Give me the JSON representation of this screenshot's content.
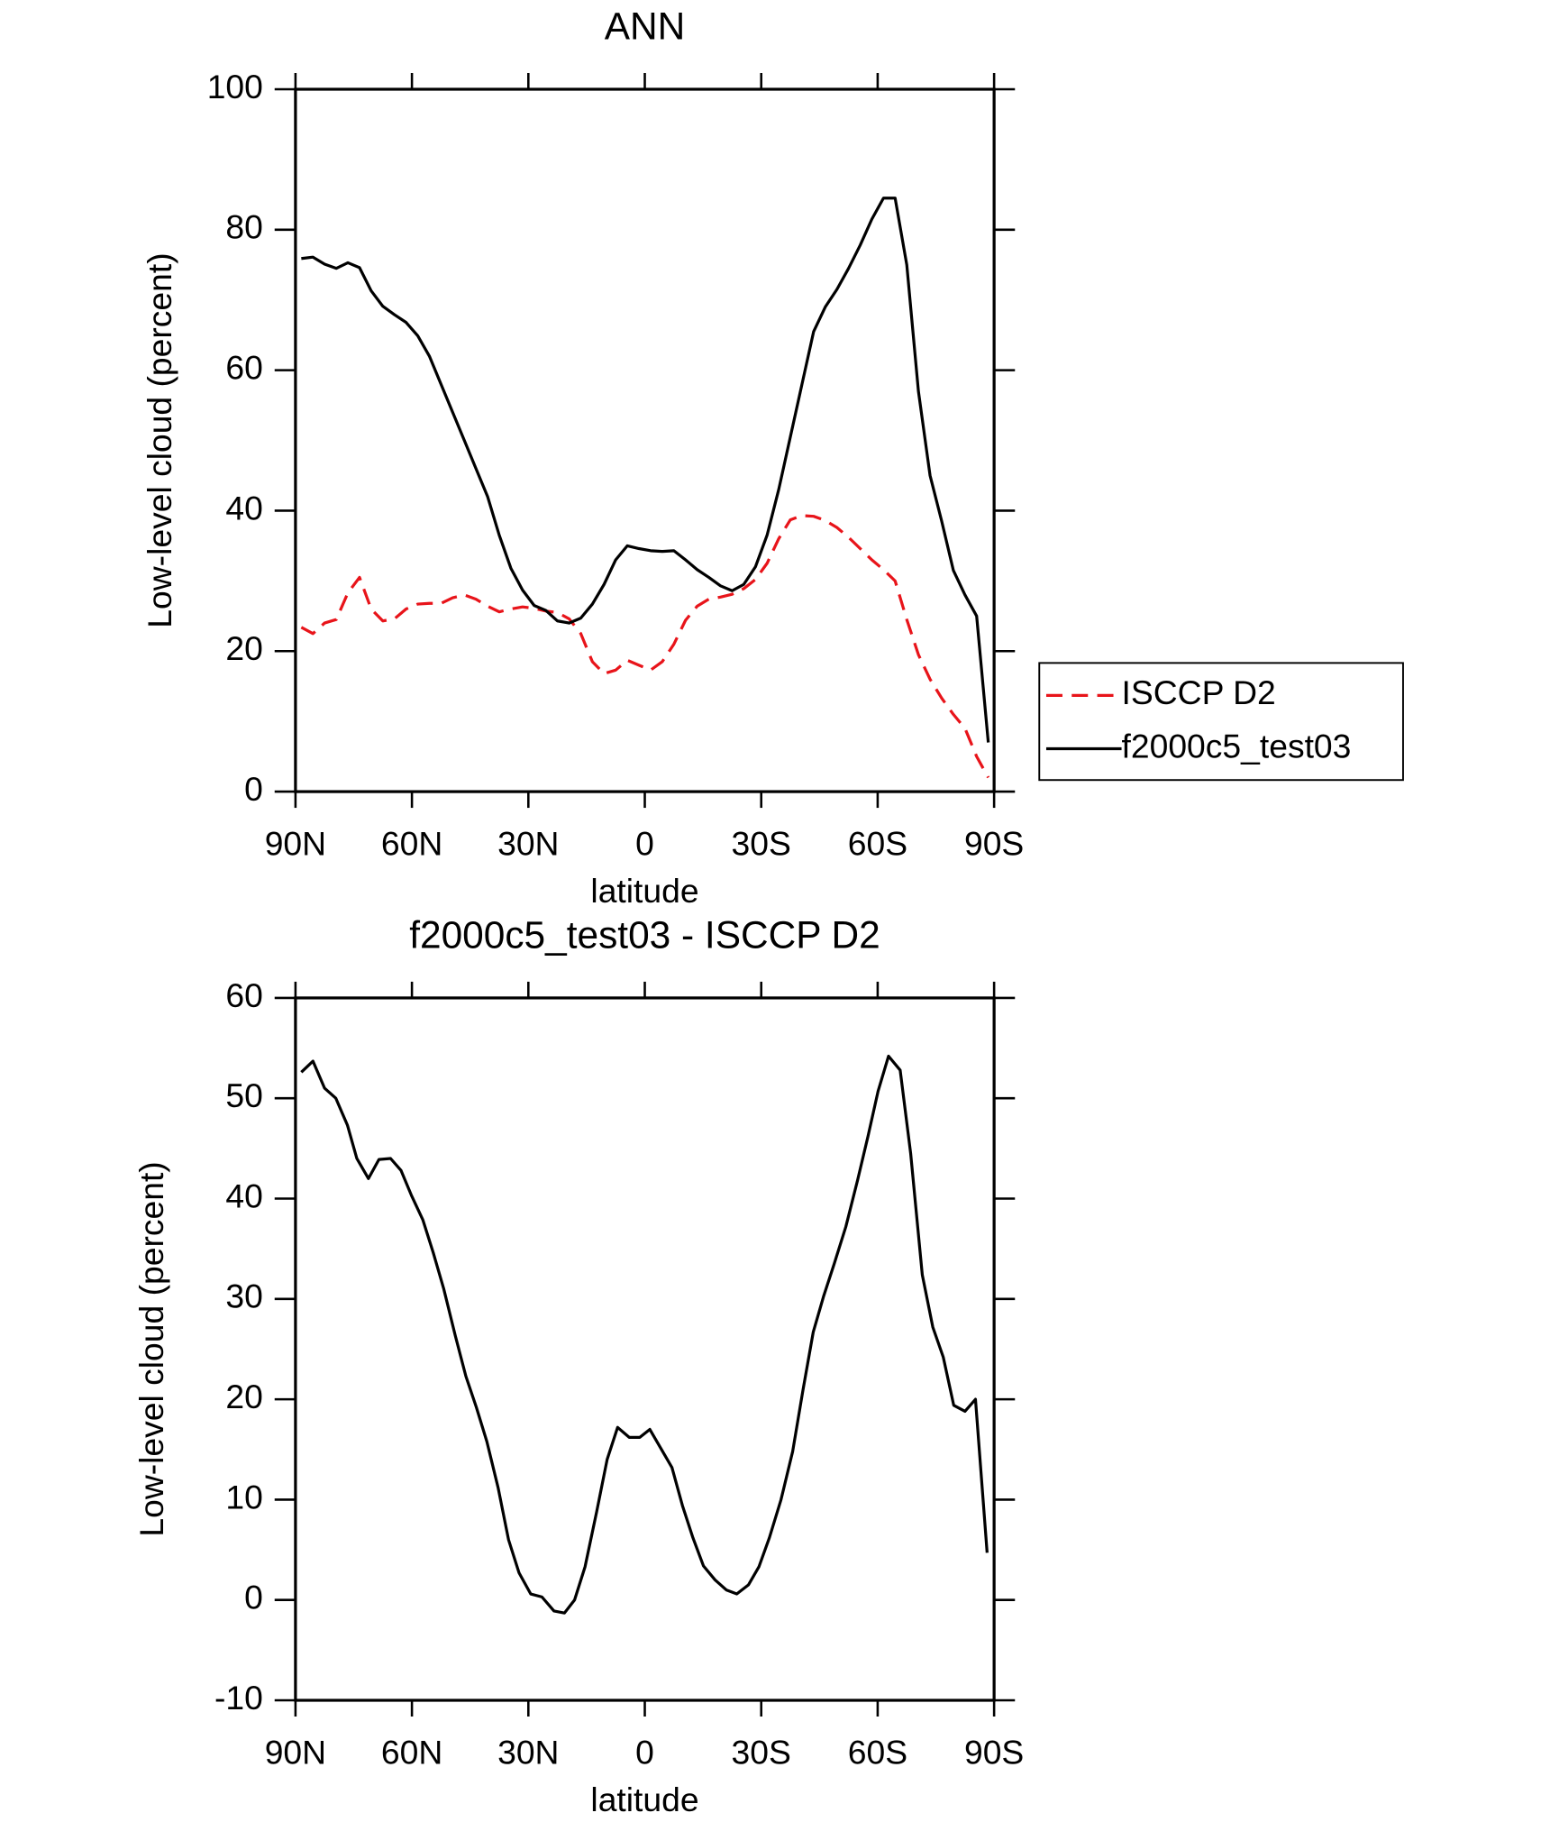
{
  "chart_data": [
    {
      "type": "line",
      "title": "ANN",
      "xlabel": "latitude",
      "ylabel": "Low-level cloud (percent)",
      "xlim": [
        90,
        -90
      ],
      "xticks": [
        {
          "value": 90,
          "label": "90N"
        },
        {
          "value": 60,
          "label": "60N"
        },
        {
          "value": 30,
          "label": "30N"
        },
        0,
        {
          "value": -30,
          "label": "30S"
        },
        {
          "value": -60,
          "label": "60S"
        },
        {
          "value": -90,
          "label": "90S"
        }
      ],
      "ylim": [
        0,
        100
      ],
      "yticks": [
        0,
        20,
        40,
        60,
        80,
        100
      ],
      "legend": "right",
      "x": [
        88.5,
        85.5,
        82.5,
        79.5,
        76.5,
        73.5,
        70.5,
        67.5,
        64.5,
        61.5,
        58.5,
        55.5,
        52.5,
        49.5,
        46.5,
        43.5,
        40.5,
        37.5,
        34.5,
        31.5,
        28.5,
        25.5,
        22.5,
        19.5,
        16.5,
        13.5,
        10.5,
        7.5,
        4.5,
        1.5,
        -1.5,
        -4.5,
        -7.5,
        -10.5,
        -13.5,
        -16.5,
        -19.5,
        -22.5,
        -25.5,
        -28.5,
        -31.5,
        -34.5,
        -37.5,
        -40.5,
        -43.5,
        -46.5,
        -49.5,
        -52.5,
        -55.5,
        -58.5,
        -61.5,
        -64.5,
        -67.5,
        -70.5,
        -73.5,
        -76.5,
        -79.5,
        -82.5,
        -85.5,
        -88.5
      ],
      "series": [
        {
          "name": "ISCCP D2",
          "color": "#e8141a",
          "linestyle": "dashed",
          "values": [
            23.4,
            22.5,
            24,
            24.5,
            28.3,
            30.5,
            26,
            24.3,
            24.6,
            26,
            26.7,
            26.8,
            26.8,
            27.6,
            28,
            27.4,
            26.4,
            25.6,
            26,
            26.3,
            26.1,
            25.7,
            25.5,
            24.6,
            22.5,
            18.5,
            16.8,
            17.3,
            18.7,
            18,
            17.3,
            18.5,
            21,
            24.4,
            26.4,
            27.4,
            27.7,
            28.1,
            28.9,
            30.2,
            32.5,
            36,
            38.7,
            39.3,
            39.2,
            38.6,
            37.6,
            36.2,
            34.6,
            33,
            31.6,
            30,
            24.5,
            19.5,
            16,
            13.3,
            11,
            9,
            5,
            2
          ]
        },
        {
          "name": "f2000c5_test03",
          "color": "#000000",
          "linestyle": "solid",
          "values": [
            75.9,
            76.1,
            75.1,
            74.5,
            75.3,
            74.6,
            71.3,
            69.1,
            67.9,
            66.8,
            64.9,
            62,
            58,
            54,
            50,
            46,
            42,
            36.5,
            31.8,
            28.7,
            26.5,
            25.8,
            24.3,
            24,
            24.7,
            26.7,
            29.5,
            33,
            35,
            34.6,
            34.3,
            34.2,
            34.3,
            33,
            31.6,
            30.5,
            29.3,
            28.6,
            29.5,
            32,
            36.5,
            43,
            50.5,
            58,
            65.5,
            69,
            71.5,
            74.5,
            77.8,
            81.5,
            84.5,
            84.5,
            75,
            57,
            45,
            38.5,
            31.5,
            28,
            25,
            7
          ]
        }
      ]
    },
    {
      "type": "line",
      "title": "f2000c5_test03 - ISCCP D2",
      "xlabel": "latitude",
      "ylabel": "Low-level cloud (percent)",
      "xlim": [
        90,
        -90
      ],
      "xticks": [
        {
          "value": 90,
          "label": "90N"
        },
        {
          "value": 60,
          "label": "60N"
        },
        {
          "value": 30,
          "label": "30N"
        },
        0,
        {
          "value": -30,
          "label": "30S"
        },
        {
          "value": -60,
          "label": "60S"
        },
        {
          "value": -90,
          "label": "90S"
        }
      ],
      "ylim": [
        -10,
        60
      ],
      "yticks": [
        -10,
        0,
        10,
        20,
        30,
        40,
        50,
        60
      ],
      "color": "#000000",
      "x": [
        88.5,
        85.5,
        82.5,
        79.6,
        76.6,
        74.2,
        71.2,
        68.5,
        65.5,
        62.8,
        60.1,
        57.2,
        54.5,
        51.8,
        48.8,
        46.1,
        43.4,
        40.7,
        37.8,
        35.1,
        32.4,
        29.4,
        26.5,
        23.4,
        20.7,
        18.1,
        15.4,
        12.4,
        9.7,
        7.0,
        4.0,
        1.3,
        -1.3,
        -4.0,
        -7.0,
        -9.7,
        -12.4,
        -15.1,
        -18.1,
        -21.0,
        -23.7,
        -26.7,
        -29.4,
        -32.1,
        -35.1,
        -38.1,
        -40.7,
        -43.4,
        -46.1,
        -48.8,
        -51.8,
        -54.8,
        -57.5,
        -60.1,
        -62.8,
        -65.8,
        -68.5,
        -71.5,
        -74.2,
        -76.9,
        -79.6,
        -82.5,
        -85.2,
        -88.2
      ],
      "values": [
        52.6,
        53.7,
        51,
        50,
        47.3,
        44,
        42,
        43.9,
        44,
        42.8,
        40.3,
        37.9,
        34.6,
        31,
        26.3,
        22.3,
        19.2,
        15.8,
        11.2,
        6,
        2.7,
        0.6,
        0.3,
        -1.1,
        -1.3,
        0,
        3.3,
        8.8,
        14,
        17.2,
        16.2,
        16.2,
        17,
        15.2,
        13.2,
        9.4,
        6.2,
        3.4,
        2,
        1,
        0.6,
        1.5,
        3.3,
        6.2,
        10,
        14.8,
        20.8,
        26.7,
        30.3,
        33.5,
        37.2,
        41.8,
        46.2,
        50.7,
        54.2,
        52.8,
        44.5,
        32.4,
        27.2,
        24.2,
        19.4,
        18.8,
        20,
        4.7
      ]
    }
  ]
}
